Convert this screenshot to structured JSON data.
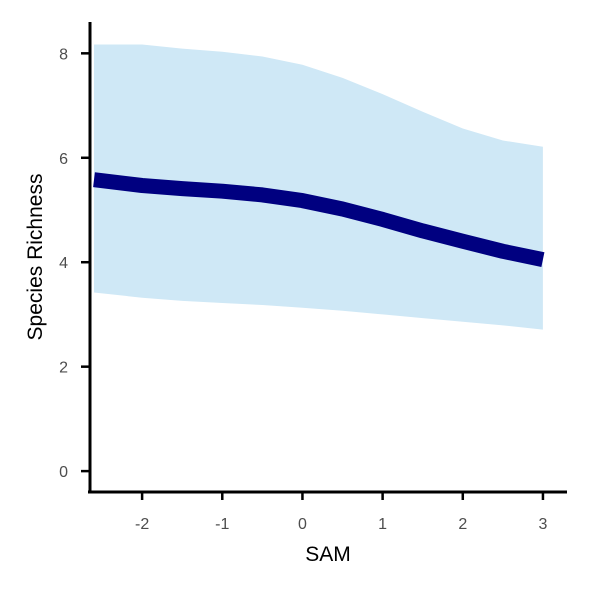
{
  "chart_data": {
    "type": "line",
    "title": "",
    "xlabel": "SAM",
    "ylabel": "Species Richness",
    "xlim": [
      -2.65,
      3.3
    ],
    "ylim": [
      -0.4,
      8.6
    ],
    "xticks": [
      -2,
      -1,
      0,
      1,
      2,
      3
    ],
    "xtick_labels": [
      "-2",
      "-1",
      "0",
      "1",
      "2",
      "3"
    ],
    "yticks": [
      0,
      2,
      4,
      6,
      8
    ],
    "ytick_labels": [
      "0",
      "2",
      "4",
      "6",
      "8"
    ],
    "grid": false,
    "legend": "none",
    "colors": {
      "line": "#000080",
      "ribbon": "#cfe8f6",
      "axis": "#000000",
      "tick_label": "#4d4d4d"
    },
    "series": [
      {
        "x": [
          -2.6,
          -2.0,
          -1.5,
          -1.0,
          -0.5,
          0.0,
          0.5,
          1.0,
          1.5,
          2.0,
          2.5,
          3.0
        ],
        "y": [
          5.58,
          5.47,
          5.41,
          5.36,
          5.29,
          5.18,
          5.02,
          4.82,
          4.6,
          4.4,
          4.21,
          4.05
        ],
        "lower": [
          3.42,
          3.32,
          3.26,
          3.22,
          3.18,
          3.13,
          3.07,
          3.0,
          2.93,
          2.86,
          2.79,
          2.71
        ],
        "upper": [
          8.17,
          8.17,
          8.09,
          8.03,
          7.94,
          7.78,
          7.53,
          7.22,
          6.88,
          6.56,
          6.33,
          6.21
        ]
      }
    ]
  }
}
